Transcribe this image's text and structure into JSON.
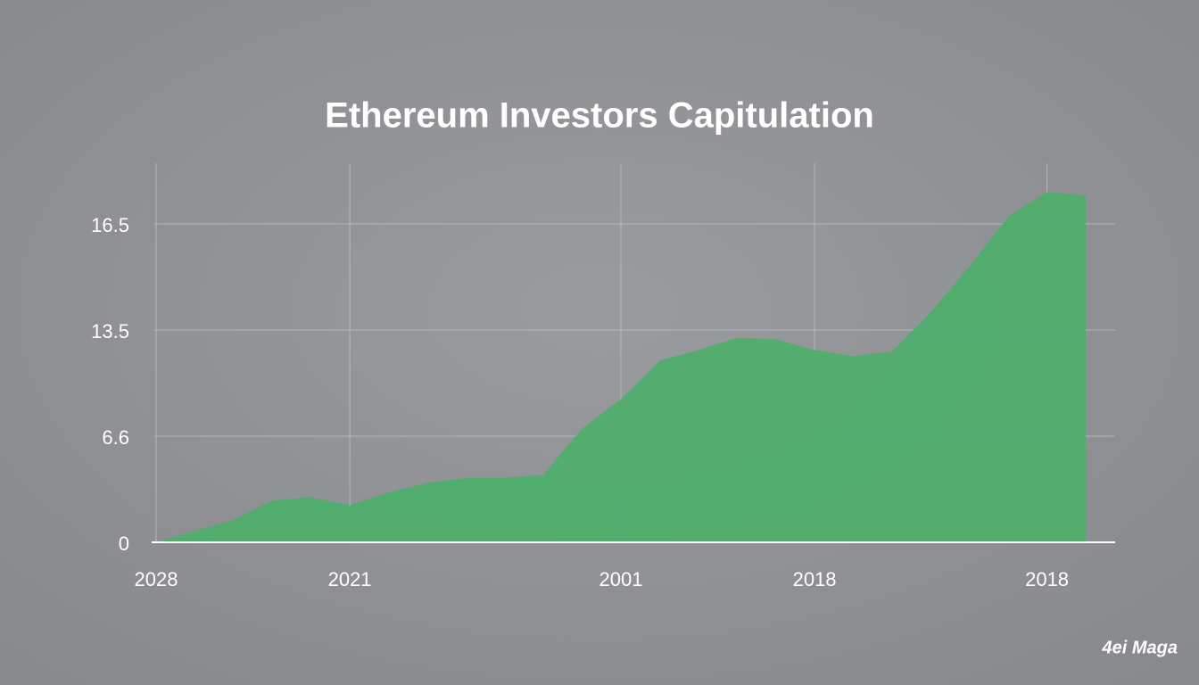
{
  "chart_data": {
    "type": "area",
    "title": "Ethereum Investors Capitulation",
    "watermark": "4ei Maga",
    "categories": [
      "2028",
      null,
      null,
      null,
      null,
      "2021",
      null,
      null,
      null,
      null,
      null,
      null,
      "2001",
      null,
      null,
      null,
      null,
      "2018",
      null,
      null,
      null,
      null,
      null,
      "2018",
      null
    ],
    "series": [
      {
        "color": "#4caf6a",
        "values": [
          0,
          0.7,
          1.4,
          2.6,
          2.8,
          2.3,
          3.1,
          3.7,
          4.0,
          4.0,
          4.2,
          7.1,
          9.0,
          11.5,
          12.2,
          13.0,
          12.9,
          12.2,
          11.8,
          12.1,
          14.0,
          15.3,
          16.7,
          17.4,
          17.3
        ]
      }
    ],
    "ylim": [
      0,
      18.2
    ],
    "yticks": [
      0,
      6.6,
      13.5,
      16.5
    ],
    "grid": true
  }
}
